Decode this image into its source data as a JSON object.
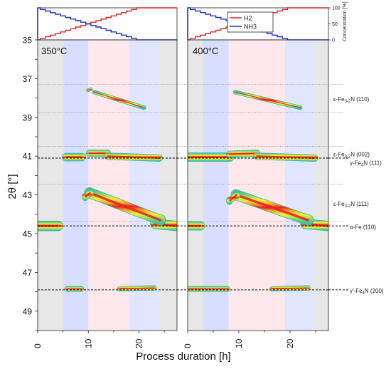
{
  "chart_data": {
    "type": "heatmap",
    "ylabel": "2θ [°]",
    "xlabel": "Process duration [h]",
    "y_axis": {
      "ticks": [
        35,
        37,
        39,
        41,
        43,
        45,
        47,
        49
      ],
      "ylim": [
        35,
        50
      ],
      "reversed": true
    },
    "x_axis": {
      "ticks": [
        0,
        10,
        20
      ],
      "xlim": [
        0,
        27.5
      ]
    },
    "gas_panel": {
      "ylabel": "Concentration [%]",
      "ticks": [
        0,
        50,
        100
      ],
      "ylim": [
        0,
        100
      ],
      "legend": [
        {
          "name": "H2",
          "color": "#d42a2a"
        },
        {
          "name": "NH3",
          "color": "#1f2fb8"
        }
      ],
      "h2_profile": [
        [
          0,
          100
        ],
        [
          0,
          0
        ],
        [
          0.5,
          0
        ],
        [
          0.5,
          5
        ],
        [
          1.5,
          5
        ],
        [
          1.5,
          10
        ],
        [
          2.5,
          10
        ],
        [
          2.5,
          15
        ],
        [
          3.5,
          15
        ],
        [
          3.5,
          20
        ],
        [
          4.5,
          20
        ],
        [
          4.5,
          25
        ],
        [
          5.5,
          25
        ],
        [
          5.5,
          30
        ],
        [
          6.5,
          30
        ],
        [
          6.5,
          35
        ],
        [
          7.5,
          35
        ],
        [
          7.5,
          40
        ],
        [
          8.5,
          40
        ],
        [
          8.5,
          45
        ],
        [
          9.5,
          45
        ],
        [
          9.5,
          50
        ],
        [
          10.5,
          50
        ],
        [
          10.5,
          55
        ],
        [
          11.5,
          55
        ],
        [
          11.5,
          60
        ],
        [
          12.5,
          60
        ],
        [
          12.5,
          65
        ],
        [
          13.5,
          65
        ],
        [
          13.5,
          70
        ],
        [
          14.5,
          70
        ],
        [
          14.5,
          75
        ],
        [
          15.5,
          75
        ],
        [
          15.5,
          80
        ],
        [
          16.5,
          80
        ],
        [
          16.5,
          85
        ],
        [
          17.5,
          85
        ],
        [
          17.5,
          90
        ],
        [
          18.5,
          90
        ],
        [
          18.5,
          95
        ],
        [
          19.5,
          95
        ],
        [
          19.5,
          100
        ],
        [
          27.5,
          100
        ]
      ],
      "nh3_profile": [
        [
          0,
          0
        ],
        [
          0,
          100
        ],
        [
          0.5,
          100
        ],
        [
          0.5,
          95
        ],
        [
          1.5,
          95
        ],
        [
          1.5,
          90
        ],
        [
          2.5,
          90
        ],
        [
          2.5,
          85
        ],
        [
          3.5,
          85
        ],
        [
          3.5,
          80
        ],
        [
          4.5,
          80
        ],
        [
          4.5,
          75
        ],
        [
          5.5,
          75
        ],
        [
          5.5,
          70
        ],
        [
          6.5,
          70
        ],
        [
          6.5,
          65
        ],
        [
          7.5,
          65
        ],
        [
          7.5,
          60
        ],
        [
          8.5,
          60
        ],
        [
          8.5,
          55
        ],
        [
          9.5,
          55
        ],
        [
          9.5,
          50
        ],
        [
          10.5,
          50
        ],
        [
          10.5,
          45
        ],
        [
          11.5,
          45
        ],
        [
          11.5,
          40
        ],
        [
          12.5,
          40
        ],
        [
          12.5,
          35
        ],
        [
          13.5,
          35
        ],
        [
          13.5,
          30
        ],
        [
          14.5,
          30
        ],
        [
          14.5,
          25
        ],
        [
          15.5,
          25
        ],
        [
          15.5,
          20
        ],
        [
          16.5,
          20
        ],
        [
          16.5,
          15
        ],
        [
          17.5,
          15
        ],
        [
          17.5,
          10
        ],
        [
          18.5,
          10
        ],
        [
          18.5,
          5
        ],
        [
          19.5,
          5
        ],
        [
          19.5,
          0
        ],
        [
          27.5,
          0
        ]
      ]
    },
    "panels": [
      {
        "label": "350°C",
        "shading": [
          {
            "x": [
              0,
              5
            ],
            "color": "#d4d4d4"
          },
          {
            "x": [
              5,
              10
            ],
            "color": "#b8c2ff"
          },
          {
            "x": [
              10,
              18
            ],
            "color": "#ffd6dc"
          },
          {
            "x": [
              18,
              24
            ],
            "color": "#c8d2ff"
          },
          {
            "x": [
              24,
              27.5
            ],
            "color": "#d4d4d4"
          }
        ],
        "bands": [
          {
            "x": [
              0,
              4
            ],
            "y": [
              44.6,
              44.6
            ],
            "w": 0.25
          },
          {
            "x": [
              23.2,
              27.3
            ],
            "y": [
              44.5,
              44.6
            ],
            "w": 0.25
          },
          {
            "x": [
              5.6,
              8.7
            ],
            "y": [
              41.05,
              41.05
            ],
            "w": 0.2
          },
          {
            "x": [
              10.2,
              13.8
            ],
            "y": [
              40.85,
              40.85
            ],
            "w": 0.17
          },
          {
            "x": [
              13.8,
              24
            ],
            "y": [
              41.0,
              41.1
            ],
            "w": 0.17
          },
          {
            "x": [
              10.3,
              24.2
            ],
            "y": [
              42.9,
              44.3
            ],
            "w": 0.28
          },
          {
            "x": [
              9.5,
              10.3
            ],
            "y": [
              43.1,
              42.9
            ],
            "w": 0.2
          },
          {
            "x": [
              11.2,
              21
            ],
            "y": [
              37.7,
              38.5
            ],
            "w": 0.1
          },
          {
            "x": [
              9.9,
              10.5
            ],
            "y": [
              37.6,
              37.55
            ],
            "w": 0.08
          },
          {
            "x": [
              5.8,
              8.6
            ],
            "y": [
              47.85,
              47.85
            ],
            "w": 0.13
          },
          {
            "x": [
              16.2,
              23
            ],
            "y": [
              47.85,
              47.8
            ],
            "w": 0.12
          }
        ]
      },
      {
        "label": "400°C",
        "shading": [
          {
            "x": [
              0,
              3
            ],
            "color": "#d4d4d4"
          },
          {
            "x": [
              3,
              8
            ],
            "color": "#b8c2ff"
          },
          {
            "x": [
              8,
              19
            ],
            "color": "#ffd6dc"
          },
          {
            "x": [
              19,
              24.5
            ],
            "color": "#c8d2ff"
          },
          {
            "x": [
              24.5,
              27.5
            ],
            "color": "#d4d4d4"
          }
        ],
        "bands": [
          {
            "x": [
              0,
              2.5
            ],
            "y": [
              44.6,
              44.6
            ],
            "w": 0.22
          },
          {
            "x": [
              23,
              27.3
            ],
            "y": [
              44.5,
              44.6
            ],
            "w": 0.25
          },
          {
            "x": [
              0.3,
              8.2
            ],
            "y": [
              41.05,
              41.05
            ],
            "w": 0.22
          },
          {
            "x": [
              8.2,
              13.5
            ],
            "y": [
              40.9,
              40.85
            ],
            "w": 0.17
          },
          {
            "x": [
              13.5,
              24.8
            ],
            "y": [
              41.0,
              41.1
            ],
            "w": 0.17
          },
          {
            "x": [
              9.5,
              23.5
            ],
            "y": [
              43.0,
              44.3
            ],
            "w": 0.28
          },
          {
            "x": [
              8.3,
              9.5
            ],
            "y": [
              43.3,
              43.0
            ],
            "w": 0.2
          },
          {
            "x": [
              9.3,
              22
            ],
            "y": [
              37.7,
              38.5
            ],
            "w": 0.1
          },
          {
            "x": [
              0.3,
              7.8
            ],
            "y": [
              47.85,
              47.85
            ],
            "w": 0.13
          },
          {
            "x": [
              16.5,
              23.5
            ],
            "y": [
              47.85,
              47.8
            ],
            "w": 0.12
          }
        ]
      }
    ],
    "reference_lines": [
      {
        "y": 41.1,
        "style": "dashed",
        "label_parts": [
          "γ-Fe",
          "4",
          "N (111)"
        ],
        "label_y": 41.35
      },
      {
        "y": 44.6,
        "style": "dashed",
        "label_parts": [
          "α-Fe (110)"
        ],
        "label_y": 44.65
      },
      {
        "y": 47.9,
        "style": "dashed",
        "label_parts": [
          "γ'-Fe",
          "4",
          "N (200)"
        ],
        "label_y": 47.95
      },
      {
        "y": 37.3,
        "style": "dotted"
      },
      {
        "y": 38.75,
        "style": "dotted"
      },
      {
        "y": 40.5,
        "style": "dotted"
      },
      {
        "y": 42.45,
        "style": "dotted"
      },
      {
        "y": 44.35,
        "style": "dotted"
      }
    ],
    "phase_labels": [
      {
        "parts": [
          "ε-Fe",
          "3-2",
          "N (110)"
        ],
        "y": 38.05
      },
      {
        "parts": [
          "ε-Fe",
          "3-2",
          "N (002)"
        ],
        "y": 40.9
      },
      {
        "parts": [
          "ε-Fe",
          "3-2",
          "N (111)"
        ],
        "y": 43.45
      }
    ]
  }
}
